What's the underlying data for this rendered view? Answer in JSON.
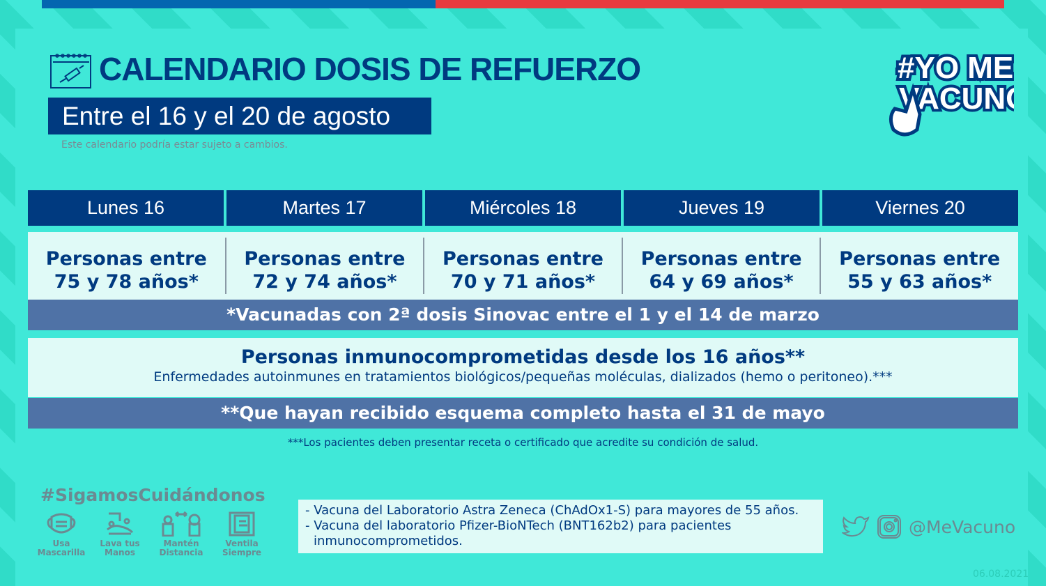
{
  "header": {
    "title": "CALENDARIO DOSIS DE REFUERZO",
    "subtitle": "Entre el 16 y el 20 de agosto",
    "disclaimer": "Este calendario podría estar sujeto a cambios.",
    "logo_text": "#YO ME VACUNO"
  },
  "days": [
    {
      "label": "Lunes 16",
      "group_line1": "Personas entre",
      "group_line2": "75 y 78 años*"
    },
    {
      "label": "Martes 17",
      "group_line1": "Personas entre",
      "group_line2": "72 y 74 años*"
    },
    {
      "label": "Miércoles 18",
      "group_line1": "Personas entre",
      "group_line2": "70 y 71 años*"
    },
    {
      "label": "Jueves 19",
      "group_line1": "Personas entre",
      "group_line2": "64 y 69 años*"
    },
    {
      "label": "Viernes 20",
      "group_line1": "Personas entre",
      "group_line2": "55 y 63 años*"
    }
  ],
  "band1": "*Vacunadas con 2ª dosis Sinovac entre el 1 y el 14 de marzo",
  "immuno": {
    "title": "Personas inmunocomprometidas desde los 16 años**",
    "detail": "Enfermedades autoinmunes en tratamientos biológicos/pequeñas moléculas, dializados (hemo o peritoneo).***"
  },
  "band2": "**Que hayan recibido esquema completo hasta el 31 de mayo",
  "footnote": "***Los pacientes deben presentar receta o certificado que acredite su condición de salud.",
  "care": {
    "hashtag": "#SigamosCuidándonos",
    "items": [
      {
        "icon": "mask-icon",
        "line1": "Usa",
        "line2": "Mascarilla"
      },
      {
        "icon": "handwash-icon",
        "line1": "Lava tus",
        "line2": "Manos"
      },
      {
        "icon": "distance-icon",
        "line1": "Mantén",
        "line2": "Distancia"
      },
      {
        "icon": "window-icon",
        "line1": "Ventila",
        "line2": "Siempre"
      }
    ]
  },
  "vaccines": [
    "- Vacuna del Laboratorio Astra Zeneca (ChAdOx1-S) para mayores de 55 años.",
    "- Vacuna del laboratorio Pfizer-BioNTech (BNT162b2) para pacientes",
    "inmunocomprometidos."
  ],
  "social": {
    "handle": "@MeVacuno"
  },
  "date": "06.08.2021",
  "colors": {
    "navy": "#003a80",
    "band": "#4f72a6",
    "background": "#40e8d8",
    "top_blue": "#0466b0",
    "top_red": "#e83a3f"
  }
}
